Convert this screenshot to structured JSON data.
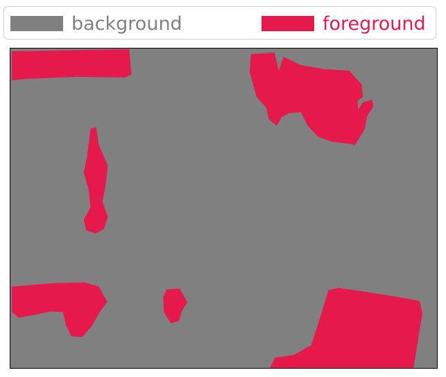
{
  "legend": {
    "background": {
      "label": "background",
      "color": "#808080"
    },
    "foreground": {
      "label": "foreground",
      "color": "#e5194b"
    }
  },
  "colors": {
    "background": "#808080",
    "foreground": "#e5194b",
    "panel_border": "#000000",
    "legend_border": "#d0d0d0"
  }
}
